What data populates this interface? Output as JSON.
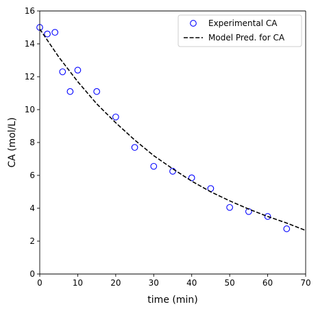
{
  "chart_data": {
    "type": "scatter",
    "xlabel": "time (min)",
    "ylabel": "CA (mol/L)",
    "xlim": [
      0,
      70
    ],
    "ylim": [
      0,
      16
    ],
    "xticks": [
      0,
      10,
      20,
      30,
      40,
      50,
      60,
      70
    ],
    "yticks": [
      0,
      2,
      4,
      6,
      8,
      10,
      12,
      14,
      16
    ],
    "grid": false,
    "legend_position": "top-right",
    "series": [
      {
        "name": "Experimental CA",
        "kind": "scatter",
        "marker": "open-circle",
        "color": "#0000ff",
        "x": [
          0,
          2,
          4,
          6,
          8,
          10,
          15,
          20,
          25,
          30,
          35,
          40,
          45,
          50,
          55,
          60,
          65
        ],
        "y": [
          15.0,
          14.6,
          14.7,
          12.3,
          11.1,
          12.4,
          11.1,
          9.55,
          7.7,
          6.55,
          6.25,
          5.85,
          5.2,
          4.05,
          3.8,
          3.5,
          2.75
        ]
      },
      {
        "name": "Model Pred. for CA",
        "kind": "line",
        "line_style": "dashed",
        "color": "#000000",
        "x": [
          0,
          5,
          10,
          15,
          20,
          25,
          30,
          35,
          40,
          45,
          50,
          55,
          60,
          65,
          70
        ],
        "y": [
          14.9,
          13.2,
          11.7,
          10.35,
          9.2,
          8.15,
          7.2,
          6.4,
          5.65,
          5.0,
          4.45,
          3.95,
          3.5,
          3.1,
          2.65
        ]
      }
    ]
  }
}
